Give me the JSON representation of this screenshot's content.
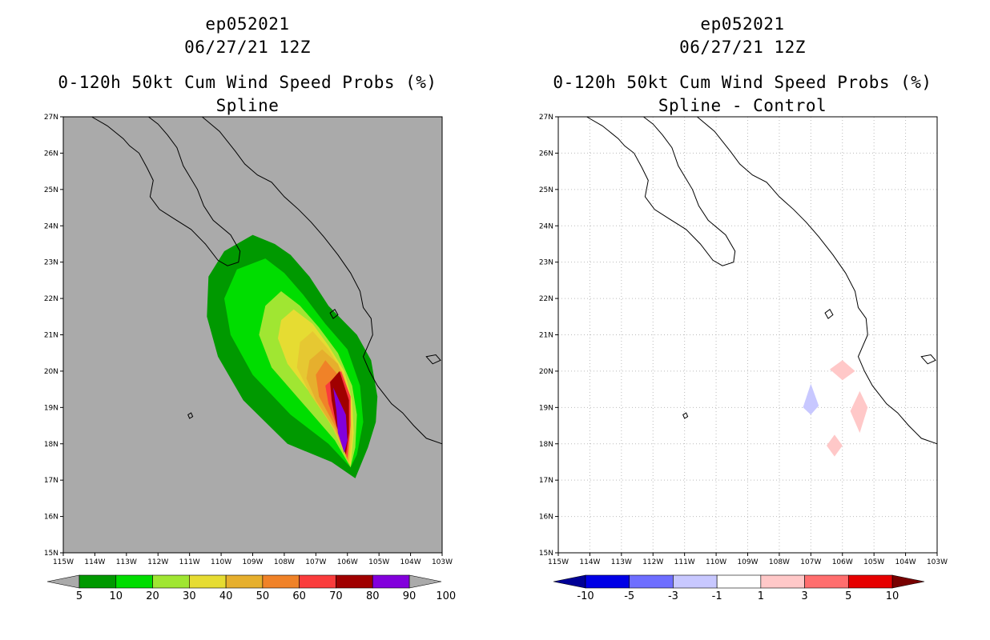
{
  "chart_data": [
    {
      "type": "contour-map",
      "storm_id": "ep052021",
      "datetime": "06/27/21 12Z",
      "title": "0-120h 50kt Cum Wind Speed Probs (%)",
      "subtitle": "Spline",
      "xlim": [
        -115,
        -103
      ],
      "ylim": [
        15,
        27
      ],
      "x_ticks": [
        "115W",
        "114W",
        "113W",
        "112W",
        "111W",
        "110W",
        "109W",
        "108W",
        "107W",
        "106W",
        "105W",
        "104W",
        "103W"
      ],
      "y_ticks": [
        "15N",
        "16N",
        "17N",
        "18N",
        "19N",
        "20N",
        "21N",
        "22N",
        "23N",
        "24N",
        "25N",
        "26N",
        "27N"
      ],
      "background": "#aaaaaa",
      "colorbar_labels": [
        "5",
        "10",
        "20",
        "30",
        "40",
        "50",
        "60",
        "70",
        "80",
        "90",
        "100"
      ],
      "colorbar_colors": [
        "#009900",
        "#00dd00",
        "#a0e632",
        "#e6dc32",
        "#e6af2d",
        "#f08228",
        "#fa3c3c",
        "#a00000",
        "#8200dc"
      ],
      "contours": [
        {
          "level": "5",
          "color": "#009900",
          "points": [
            [
              -109.0,
              23.75
            ],
            [
              -108.3,
              23.5
            ],
            [
              -107.8,
              23.2
            ],
            [
              -107.2,
              22.6
            ],
            [
              -106.6,
              21.8
            ],
            [
              -105.7,
              21.0
            ],
            [
              -105.25,
              20.3
            ],
            [
              -105.05,
              19.3
            ],
            [
              -105.1,
              18.6
            ],
            [
              -105.35,
              17.9
            ],
            [
              -105.75,
              17.05
            ],
            [
              -106.5,
              17.5
            ],
            [
              -107.9,
              18.0
            ],
            [
              -109.3,
              19.2
            ],
            [
              -110.1,
              20.4
            ],
            [
              -110.45,
              21.5
            ],
            [
              -110.4,
              22.6
            ],
            [
              -109.9,
              23.3
            ]
          ]
        },
        {
          "level": "10",
          "color": "#00dd00",
          "points": [
            [
              -108.6,
              23.1
            ],
            [
              -108.0,
              22.7
            ],
            [
              -107.4,
              22.1
            ],
            [
              -106.7,
              21.3
            ],
            [
              -106.0,
              20.6
            ],
            [
              -105.6,
              19.6
            ],
            [
              -105.5,
              18.6
            ],
            [
              -105.7,
              17.7
            ],
            [
              -105.9,
              17.35
            ],
            [
              -106.6,
              18.0
            ],
            [
              -107.8,
              18.8
            ],
            [
              -109.0,
              19.9
            ],
            [
              -109.7,
              21.0
            ],
            [
              -109.9,
              22.0
            ],
            [
              -109.5,
              22.8
            ]
          ]
        },
        {
          "level": "20",
          "color": "#a0e632",
          "points": [
            [
              -108.1,
              22.2
            ],
            [
              -107.5,
              21.8
            ],
            [
              -106.9,
              21.2
            ],
            [
              -106.3,
              20.5
            ],
            [
              -105.85,
              19.6
            ],
            [
              -105.7,
              18.8
            ],
            [
              -105.75,
              17.9
            ],
            [
              -105.9,
              17.35
            ],
            [
              -106.4,
              18.1
            ],
            [
              -107.3,
              19.0
            ],
            [
              -108.4,
              20.1
            ],
            [
              -108.8,
              21.0
            ],
            [
              -108.6,
              21.8
            ]
          ]
        },
        {
          "level": "30",
          "color": "#e6dc32",
          "points": [
            [
              -107.7,
              21.7
            ],
            [
              -107.1,
              21.3
            ],
            [
              -106.6,
              20.7
            ],
            [
              -106.1,
              20.0
            ],
            [
              -105.85,
              19.2
            ],
            [
              -105.8,
              18.3
            ],
            [
              -105.9,
              17.4
            ],
            [
              -106.3,
              18.2
            ],
            [
              -107.0,
              19.2
            ],
            [
              -107.9,
              20.2
            ],
            [
              -108.2,
              20.9
            ],
            [
              -108.1,
              21.4
            ]
          ]
        },
        {
          "level": "40",
          "color": "#e6c832",
          "points": [
            [
              -107.1,
              21.1
            ],
            [
              -106.6,
              20.6
            ],
            [
              -106.1,
              19.9
            ],
            [
              -105.9,
              19.1
            ],
            [
              -105.85,
              18.2
            ],
            [
              -105.95,
              17.45
            ],
            [
              -106.5,
              18.5
            ],
            [
              -107.2,
              19.4
            ],
            [
              -107.6,
              20.1
            ],
            [
              -107.5,
              20.8
            ]
          ]
        },
        {
          "level": "50",
          "color": "#e6af2d",
          "points": [
            [
              -106.8,
              20.6
            ],
            [
              -106.3,
              20.2
            ],
            [
              -106.0,
              19.5
            ],
            [
              -105.9,
              18.6
            ],
            [
              -105.95,
              17.5
            ],
            [
              -106.4,
              18.4
            ],
            [
              -107.0,
              19.2
            ],
            [
              -107.3,
              19.8
            ],
            [
              -107.2,
              20.3
            ]
          ]
        },
        {
          "level": "60",
          "color": "#f08228",
          "points": [
            [
              -106.7,
              20.3
            ],
            [
              -106.2,
              19.8
            ],
            [
              -106.0,
              19.1
            ],
            [
              -105.95,
              18.2
            ],
            [
              -106.0,
              17.55
            ],
            [
              -106.4,
              18.5
            ],
            [
              -106.9,
              19.3
            ],
            [
              -107.0,
              19.9
            ]
          ]
        },
        {
          "level": "70",
          "color": "#fa3c3c",
          "points": [
            [
              -106.2,
              20.0
            ],
            [
              -105.9,
              19.3
            ],
            [
              -105.9,
              18.5
            ],
            [
              -106.0,
              17.6
            ],
            [
              -106.3,
              18.4
            ],
            [
              -106.6,
              19.1
            ],
            [
              -106.7,
              19.6
            ]
          ]
        },
        {
          "level": "80",
          "color": "#a00000",
          "points": [
            [
              -106.25,
              20.0
            ],
            [
              -105.95,
              19.2
            ],
            [
              -105.95,
              18.3
            ],
            [
              -106.05,
              17.7
            ],
            [
              -106.35,
              18.5
            ],
            [
              -106.5,
              19.2
            ],
            [
              -106.55,
              19.7
            ]
          ]
        },
        {
          "level": "90",
          "color": "#8200dc",
          "points": [
            [
              -106.45,
              19.55
            ],
            [
              -106.05,
              18.8
            ],
            [
              -106.0,
              18.1
            ],
            [
              -106.1,
              17.75
            ],
            [
              -106.3,
              18.3
            ],
            [
              -106.35,
              18.9
            ]
          ]
        }
      ]
    },
    {
      "type": "contour-map",
      "storm_id": "ep052021",
      "datetime": "06/27/21 12Z",
      "title": "0-120h 50kt Cum Wind Speed Probs (%)",
      "subtitle": "Spline - Control",
      "xlim": [
        -115,
        -103
      ],
      "ylim": [
        15,
        27
      ],
      "x_ticks": [
        "115W",
        "114W",
        "113W",
        "112W",
        "111W",
        "110W",
        "109W",
        "108W",
        "107W",
        "106W",
        "105W",
        "104W",
        "103W"
      ],
      "y_ticks": [
        "15N",
        "16N",
        "17N",
        "18N",
        "19N",
        "20N",
        "21N",
        "22N",
        "23N",
        "24N",
        "25N",
        "26N",
        "27N"
      ],
      "background": "#ffffff",
      "grid": true,
      "colorbar_labels": [
        "-10",
        "-5",
        "-3",
        "-1",
        "1",
        "3",
        "5",
        "10"
      ],
      "colorbar_colors": [
        "#000096",
        "#0000e6",
        "#6e6eff",
        "#c8c8ff",
        "#ffffff",
        "#ffc8c8",
        "#ff6e6e",
        "#e60000",
        "#780000"
      ],
      "contours": [
        {
          "level": "1 to 3",
          "color": "#ffc8c8",
          "points": [
            [
              -106.4,
              20.05
            ],
            [
              -106.0,
              20.3
            ],
            [
              -105.6,
              20.0
            ],
            [
              -106.0,
              19.75
            ]
          ]
        },
        {
          "level": "1 to 3",
          "color": "#ffc8c8",
          "points": [
            [
              -105.45,
              19.45
            ],
            [
              -105.2,
              19.0
            ],
            [
              -105.45,
              18.3
            ],
            [
              -105.75,
              18.9
            ]
          ]
        },
        {
          "level": "1 to 3",
          "color": "#ffc8c8",
          "points": [
            [
              -106.5,
              17.95
            ],
            [
              -106.25,
              18.25
            ],
            [
              -106.0,
              17.95
            ],
            [
              -106.25,
              17.65
            ]
          ]
        },
        {
          "level": "-3 to -1",
          "color": "#c8c8ff",
          "points": [
            [
              -107.0,
              19.65
            ],
            [
              -106.75,
              19.05
            ],
            [
              -107.0,
              18.8
            ],
            [
              -107.25,
              19.0
            ]
          ]
        }
      ]
    }
  ]
}
